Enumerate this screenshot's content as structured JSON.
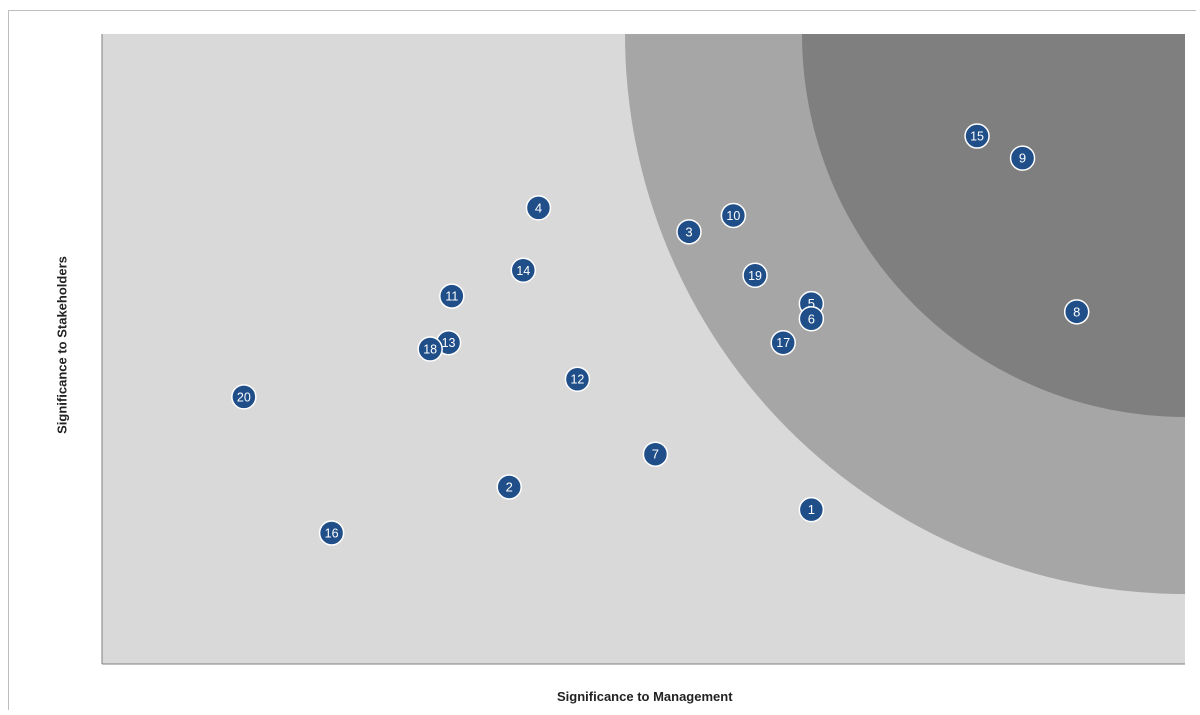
{
  "chart_data": {
    "type": "scatter",
    "title": "",
    "xlabel": "Significance to Management",
    "ylabel": "Significance to Stakeholders",
    "xlim": [
      0,
      100
    ],
    "ylim": [
      0,
      100
    ],
    "grid": false,
    "legend": "none",
    "background_zones": [
      {
        "level": "low",
        "color": "#d9d9d9"
      },
      {
        "level": "medium",
        "color": "#a6a6a6"
      },
      {
        "level": "high",
        "color": "#7f7f7f"
      }
    ],
    "marker_color": "#1f4e89",
    "marker_label_color": "#ffffff",
    "points": [
      {
        "label": "1",
        "x": 65.5,
        "y": 24.5
      },
      {
        "label": "2",
        "x": 37.6,
        "y": 28.1
      },
      {
        "label": "3",
        "x": 54.2,
        "y": 68.6
      },
      {
        "label": "4",
        "x": 40.3,
        "y": 72.4
      },
      {
        "label": "5",
        "x": 65.5,
        "y": 57.2
      },
      {
        "label": "6",
        "x": 65.5,
        "y": 54.8
      },
      {
        "label": "7",
        "x": 51.1,
        "y": 33.3
      },
      {
        "label": "8",
        "x": 90.0,
        "y": 55.9
      },
      {
        "label": "9",
        "x": 85.0,
        "y": 80.3
      },
      {
        "label": "10",
        "x": 58.3,
        "y": 71.2
      },
      {
        "label": "11",
        "x": 32.3,
        "y": 58.4
      },
      {
        "label": "12",
        "x": 43.9,
        "y": 45.2
      },
      {
        "label": "13",
        "x": 32.0,
        "y": 51.0
      },
      {
        "label": "14",
        "x": 38.9,
        "y": 62.5
      },
      {
        "label": "15",
        "x": 80.8,
        "y": 83.8
      },
      {
        "label": "16",
        "x": 21.2,
        "y": 20.8
      },
      {
        "label": "17",
        "x": 62.9,
        "y": 51.0
      },
      {
        "label": "18",
        "x": 30.3,
        "y": 50.0
      },
      {
        "label": "19",
        "x": 60.3,
        "y": 61.7
      },
      {
        "label": "20",
        "x": 13.1,
        "y": 42.4
      }
    ]
  }
}
